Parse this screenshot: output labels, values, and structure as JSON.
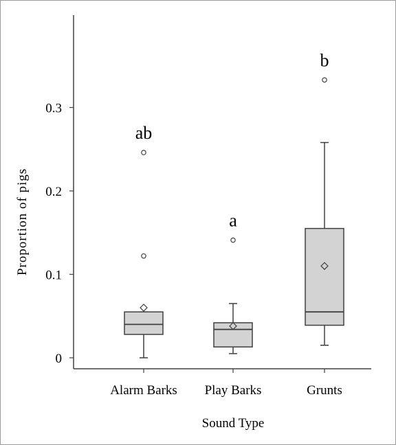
{
  "chart_data": {
    "type": "box",
    "xlabel": "Sound Type",
    "ylabel": "Proportion of pigs",
    "ylim": [
      0,
      0.39
    ],
    "yticks": [
      {
        "value": 0,
        "label": "0"
      },
      {
        "value": 0.1,
        "label": "0.1"
      },
      {
        "value": 0.2,
        "label": "0.2"
      },
      {
        "value": 0.3,
        "label": "0.3"
      }
    ],
    "categories": [
      "Alarm Barks",
      "Play Barks",
      "Grunts"
    ],
    "boxes": [
      {
        "category": "Alarm Barks",
        "whisker_low": 0.0,
        "q1": 0.028,
        "median": 0.04,
        "q3": 0.055,
        "whisker_high": 0.055,
        "mean": 0.06,
        "outliers": [
          0.122,
          0.246
        ],
        "letter": "ab"
      },
      {
        "category": "Play Barks",
        "whisker_low": 0.005,
        "q1": 0.013,
        "median": 0.034,
        "q3": 0.042,
        "whisker_high": 0.065,
        "mean": 0.038,
        "outliers": [
          0.141
        ],
        "letter": "a"
      },
      {
        "category": "Grunts",
        "whisker_low": 0.015,
        "q1": 0.039,
        "median": 0.055,
        "q3": 0.155,
        "whisker_high": 0.258,
        "mean": 0.11,
        "outliers": [
          0.333
        ],
        "letter": "b"
      }
    ],
    "box_fill": "#d3d3d3",
    "line_color": "#404040",
    "grid": false
  }
}
